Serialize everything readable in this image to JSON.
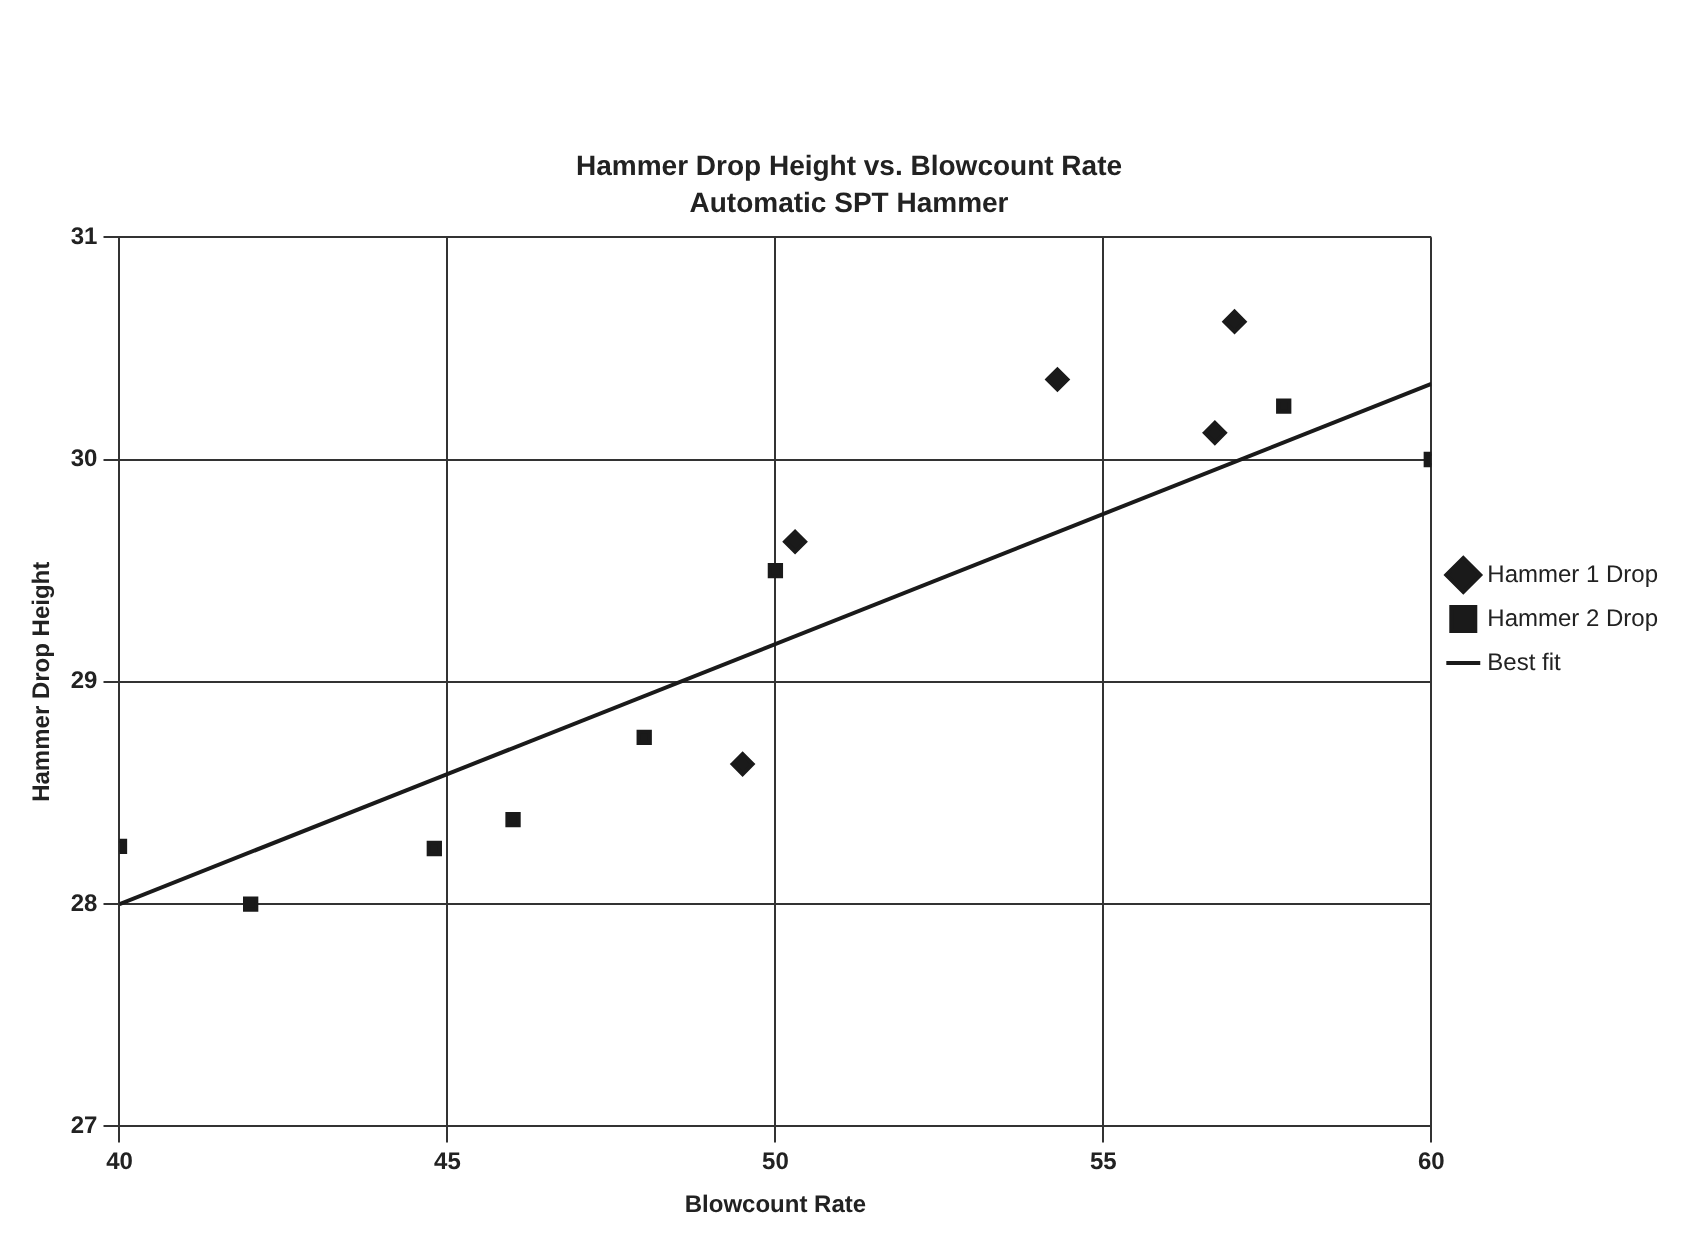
{
  "chart_data": {
    "type": "scatter",
    "title": "Hammer Drop Height vs. Blowcount Rate",
    "subtitle": "Automatic SPT Hammer",
    "xlabel": "Blowcount Rate",
    "ylabel": "Hammer Drop Height",
    "xlim": [
      40,
      60
    ],
    "xticks": [
      40,
      45,
      50,
      55,
      60
    ],
    "ylim": [
      27,
      31
    ],
    "yticks": [
      27,
      28,
      29,
      30,
      31
    ],
    "grid": true,
    "legend": "right",
    "series": [
      {
        "name": "Hammer 1 Drop",
        "color": "#1a1a1a",
        "marker": "diamond",
        "x": [
          49.5,
          50.3,
          54.3,
          56.7,
          57.0
        ],
        "values": [
          28.63,
          29.63,
          30.36,
          30.12,
          30.62
        ]
      },
      {
        "name": "Hammer 2 Drop",
        "color": "#1a1a1a",
        "marker": "square",
        "x": [
          40.0,
          42.0,
          44.8,
          46.0,
          48.0,
          50.0,
          57.75,
          60.0
        ],
        "values": [
          28.26,
          28.0,
          28.25,
          28.38,
          28.75,
          29.5,
          30.24,
          30.0
        ]
      },
      {
        "name": "Best fit",
        "type": "line",
        "color": "#1a1a1a",
        "marker": "none",
        "line_style": "solid",
        "x": [
          40,
          60
        ],
        "values": [
          28.0,
          30.34
        ]
      }
    ]
  }
}
